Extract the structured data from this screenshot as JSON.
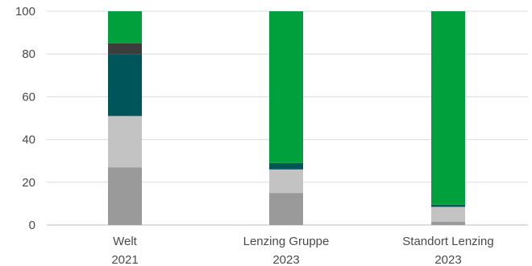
{
  "chart_data": {
    "type": "bar",
    "stacked": true,
    "categories": [
      [
        "Welt",
        "2021"
      ],
      [
        "Lenzing Gruppe",
        "2023"
      ],
      [
        "Standort Lenzing",
        "2023"
      ]
    ],
    "ylim": [
      0,
      100
    ],
    "yticks": [
      0,
      20,
      40,
      60,
      80,
      100
    ],
    "grid": true,
    "series": [
      {
        "color": "#9a9a9a",
        "values": [
          27,
          15,
          1.5
        ]
      },
      {
        "color": "#c3c3c3",
        "values": [
          24,
          11,
          7
        ]
      },
      {
        "color": "#00555a",
        "values": [
          29,
          3,
          1
        ]
      },
      {
        "color": "#3d3d3d",
        "values": [
          5,
          0,
          0
        ]
      },
      {
        "color": "#00a03c",
        "values": [
          15,
          71,
          90.5
        ]
      }
    ],
    "title": "",
    "xlabel": "",
    "ylabel": ""
  }
}
